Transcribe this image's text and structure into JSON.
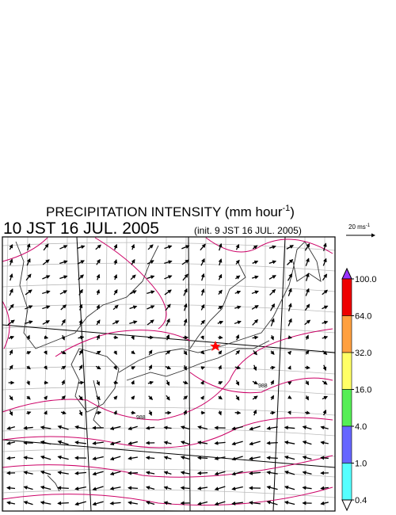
{
  "header": {
    "title": {
      "main": "PRECIPITATION INTENSITY (mm hour",
      "sup": "-1",
      "end": ")"
    },
    "valid_time": "10 JST 16 JUL. 2005",
    "init_time": "(init. 9 JST 16 JUL. 2005)"
  },
  "wind_scale": {
    "label": "20 ms",
    "sup": "-1"
  },
  "colorbar": {
    "colors": [
      "#9933ff",
      "#ee0000",
      "#ffa040",
      "#ffff66",
      "#55ee55",
      "#6666ff",
      "#55ffff",
      "#ffffff"
    ],
    "ticks": [
      {
        "value": 100,
        "label": "100.0"
      },
      {
        "value": 64,
        "label": "64.0"
      },
      {
        "value": 32,
        "label": "32.0"
      },
      {
        "value": 16,
        "label": "16.0"
      },
      {
        "value": 4,
        "label": "4.0"
      },
      {
        "value": 1,
        "label": "1.0"
      },
      {
        "value": 0.4,
        "label": "0.4"
      }
    ]
  },
  "map_labels": [
    "988",
    "988"
  ]
}
